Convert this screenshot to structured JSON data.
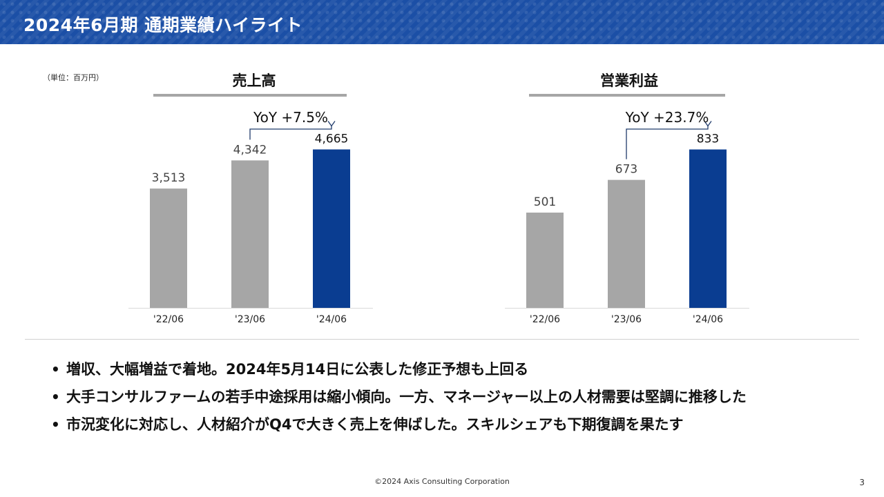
{
  "header": {
    "title": "2024年6月期 通期業績ハイライト"
  },
  "unit_label": "（単位：百万円）",
  "chart_data": [
    {
      "type": "bar",
      "title": "売上高",
      "categories": [
        "'22/06",
        "'23/06",
        "'24/06"
      ],
      "values": [
        3513,
        4342,
        4665
      ],
      "value_labels": [
        "3,513",
        "4,342",
        "4,665"
      ],
      "colors": [
        "#a6a6a6",
        "#a6a6a6",
        "#0a3d91"
      ],
      "ylim": [
        0,
        5000
      ],
      "annotation": {
        "text": "YoY +7.5%",
        "from_index": 1,
        "to_index": 2
      },
      "title_underline_color": "#a6a6a6"
    },
    {
      "type": "bar",
      "title": "営業利益",
      "categories": [
        "'22/06",
        "'23/06",
        "'24/06"
      ],
      "values": [
        501,
        673,
        833
      ],
      "value_labels": [
        "501",
        "673",
        "833"
      ],
      "colors": [
        "#a6a6a6",
        "#a6a6a6",
        "#0a3d91"
      ],
      "ylim": [
        0,
        893
      ],
      "annotation": {
        "text": "YoY +23.7%",
        "from_index": 1,
        "to_index": 2
      },
      "title_underline_color": "#a6a6a6"
    }
  ],
  "bullets": [
    "増収、大幅増益で着地。2024年5月14日に公表した修正予想も上回る",
    "大手コンサルファームの若手中途採用は縮小傾向。一方、マネージャー以上の人材需要は堅調に推移した",
    "市況変化に対応し、人材紹介がQ4で大きく売上を伸ばした。スキルシェアも下期復調を果たす"
  ],
  "footer": {
    "copyright": "©2024 Axis Consulting Corporation",
    "page_number": "3"
  }
}
